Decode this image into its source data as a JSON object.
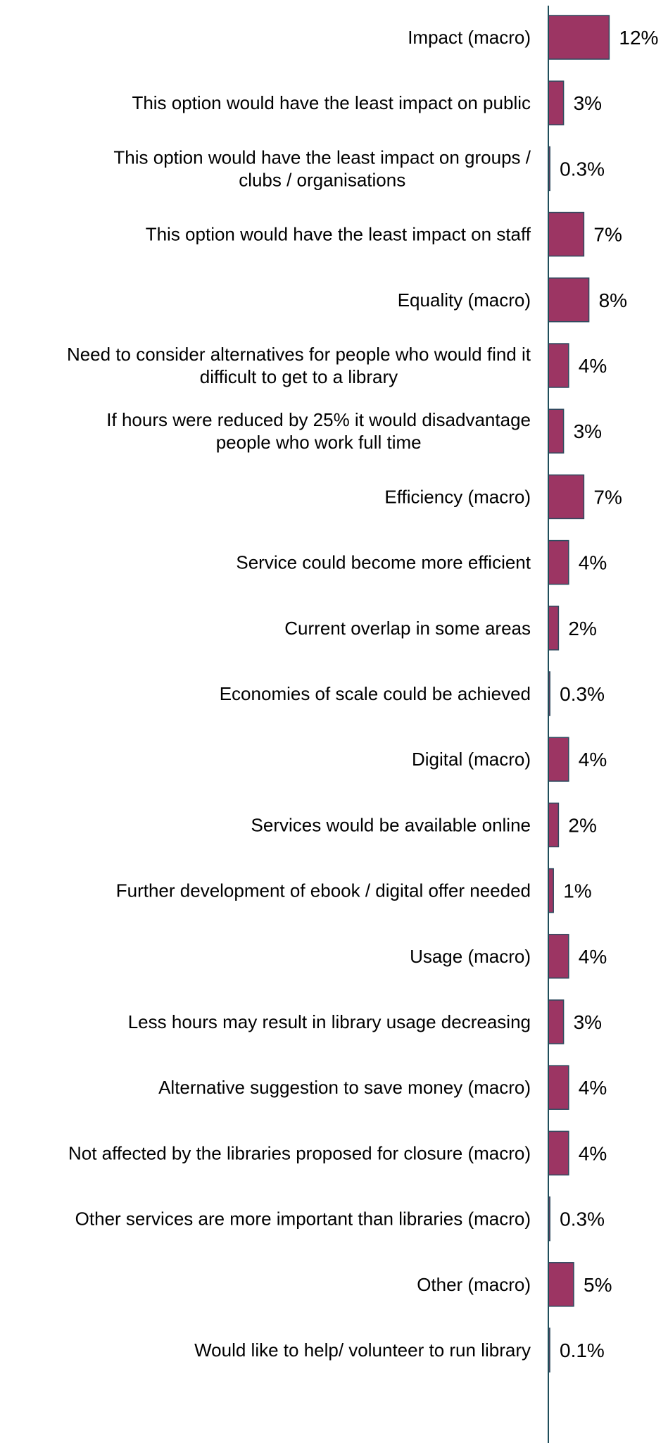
{
  "chart_data": {
    "type": "bar",
    "orientation": "horizontal",
    "categories": [
      "Impact (macro)",
      "This option would have the least impact on public",
      "This option would have the least impact on groups / clubs / organisations",
      "This option would have the least impact on staff",
      "Equality (macro)",
      "Need to consider alternatives for people who would find it difficult to get to a library",
      "If hours were reduced by 25% it would disadvantage people who work full time",
      "Efficiency (macro)",
      "Service could become more efficient",
      "Current overlap in some areas",
      "Economies of scale could be achieved",
      "Digital (macro)",
      "Services would be available online",
      "Further development of ebook / digital offer needed",
      "Usage (macro)",
      "Less hours may result in library usage decreasing",
      "Alternative suggestion to save money (macro)",
      "Not affected by the libraries proposed for closure (macro)",
      "Other services are more important than libraries (macro)",
      "Other (macro)",
      "Would like to help/ volunteer to run library"
    ],
    "category_lines": [
      [
        "Impact (macro)"
      ],
      [
        "This option would have the least impact on public"
      ],
      [
        "This option would have the least impact on groups /",
        "clubs / organisations"
      ],
      [
        "This option would have the least impact on staff"
      ],
      [
        "Equality (macro)"
      ],
      [
        "Need to consider alternatives for people who would find it",
        "difficult to get to a library"
      ],
      [
        "If hours were reduced by 25% it would disadvantage",
        "people who work full time"
      ],
      [
        "Efficiency (macro)"
      ],
      [
        "Service could become more efficient"
      ],
      [
        "Current overlap in some areas"
      ],
      [
        "Economies of scale could be achieved"
      ],
      [
        "Digital (macro)"
      ],
      [
        "Services would be available online"
      ],
      [
        "Further development of ebook / digital offer needed"
      ],
      [
        "Usage (macro)"
      ],
      [
        "Less hours may result in library usage decreasing"
      ],
      [
        "Alternative suggestion to save money (macro)"
      ],
      [
        "Not affected by the libraries proposed for closure (macro)"
      ],
      [
        "Other services are more important than libraries (macro)"
      ],
      [
        "Other (macro)"
      ],
      [
        "Would like to help/ volunteer to run library"
      ]
    ],
    "values": [
      12,
      3,
      0.3,
      7,
      8,
      4,
      3,
      7,
      4,
      2,
      0.3,
      4,
      2,
      1,
      4,
      3,
      4,
      4,
      0.3,
      5,
      0.1
    ],
    "value_labels": [
      "12%",
      "3%",
      "0.3%",
      "7%",
      "8%",
      "4%",
      "3%",
      "7%",
      "4%",
      "2%",
      "0.3%",
      "4%",
      "2%",
      "1%",
      "4%",
      "3%",
      "4%",
      "4%",
      "0.3%",
      "5%",
      "0.1%"
    ],
    "title": "",
    "xlabel": "",
    "ylabel": "",
    "xlim": [
      0,
      100
    ],
    "grid": false,
    "legend": "none",
    "colors": {
      "bar_fill": "#9c3563",
      "bar_stroke": "#2d4a5e",
      "axis": "#1f4e5a",
      "text": "#000000"
    }
  }
}
